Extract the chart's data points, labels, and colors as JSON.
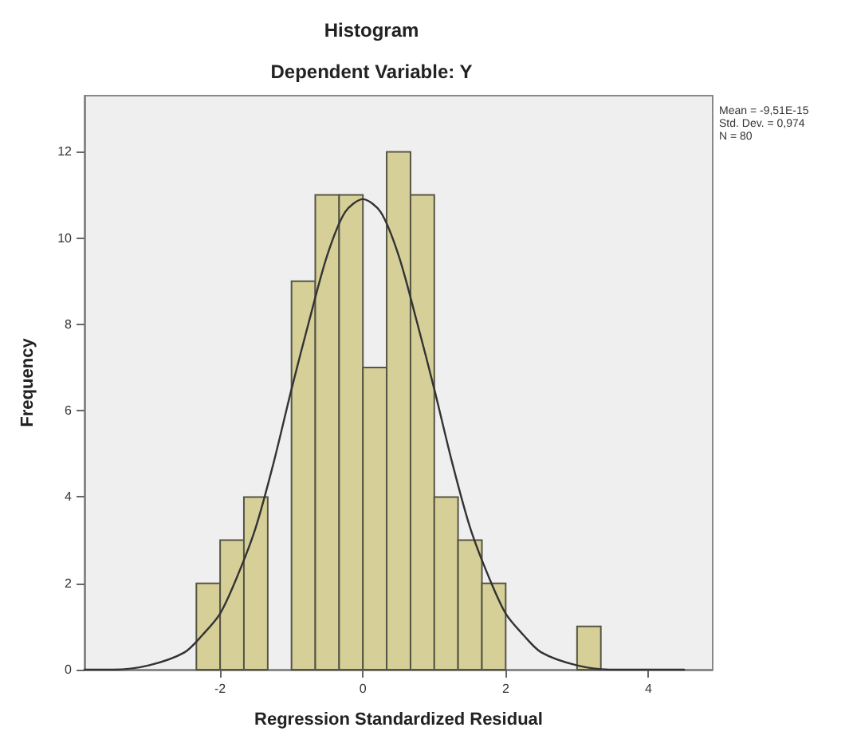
{
  "chart_data": {
    "type": "histogram",
    "title": "Histogram",
    "subtitle": "Dependent Variable: Y",
    "xlabel": "Regression Standardized Residual",
    "ylabel": "Frequency",
    "bins": [
      -2.333,
      -2,
      -1.667,
      -1.333,
      -1,
      -0.667,
      -0.333,
      0,
      0.333,
      0.667,
      1,
      1.333,
      1.667,
      2,
      2.333,
      2.667,
      3,
      3.333
    ],
    "values": [
      2,
      3,
      4,
      0,
      9,
      11,
      11,
      7,
      12,
      11,
      4,
      3,
      2,
      0,
      0,
      0,
      1
    ],
    "color": "#d6d098",
    "series": [
      {
        "type": "line",
        "color": "#333333",
        "x": [
          -3.9,
          -3.5,
          -3,
          -2.5,
          -2.25,
          -2,
          -1.75,
          -1.5,
          -1.25,
          -1,
          -0.75,
          -0.5,
          -0.25,
          0,
          0.25,
          0.5,
          0.75,
          1,
          1.25,
          1.5,
          1.75,
          2,
          2.25,
          2.5,
          3,
          3.5,
          4,
          4.5
        ],
        "values": [
          0,
          0,
          0.1,
          0.4,
          0.8,
          1.3,
          2.2,
          3.3,
          4.8,
          6.5,
          8.1,
          9.6,
          10.6,
          10.9,
          10.6,
          9.6,
          8.1,
          6.5,
          4.8,
          3.3,
          2.2,
          1.3,
          0.8,
          0.4,
          0.1,
          0,
          0,
          0
        ]
      }
    ],
    "xlim": [
      -3.9,
      4.9
    ],
    "xticks": [
      -2,
      0,
      2,
      4
    ],
    "ylim": [
      0,
      13.3
    ],
    "yticks": [
      0,
      2,
      4,
      6,
      8,
      10,
      12
    ],
    "grid": false,
    "marker": "none",
    "line_style": "solid",
    "annotations": [
      "Mean = -9,51E-15",
      "Std. Dev. = 0,974",
      "N = 80"
    ]
  }
}
